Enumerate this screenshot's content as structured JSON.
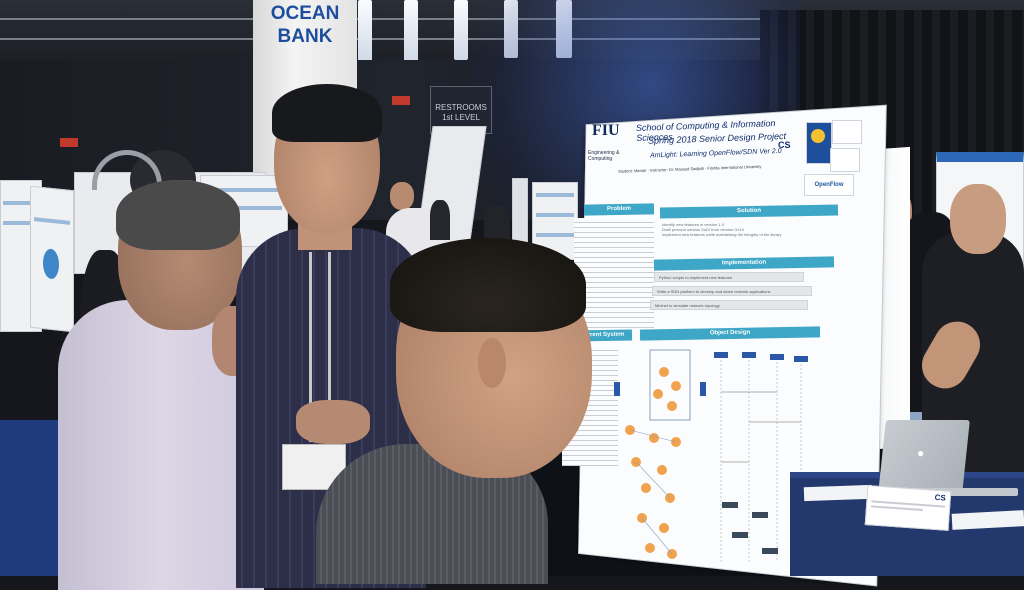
{
  "scene": {
    "description_kind": "photo",
    "pillar_sign": {
      "line1": "OCEAN",
      "line2": "BANK"
    },
    "restrooms_sign": {
      "line1": "RESTROOMS",
      "line2": "1st LEVEL"
    },
    "poster": {
      "logo": "FIU",
      "logo_sub": "Engineering & Computing",
      "title_line1": "School of Computing & Information Sciences",
      "title_line2": "Spring 2018 Senior Design Project",
      "title_line3": "AmLight: Learning OpenFlow/SDN Ver 2.0",
      "credits": "Student: Mentor · Instructor: Dr. Masoud Sadjadi · Florida International University",
      "cs_mark": "CS",
      "openflow_logo": "OpenFlow",
      "sections": {
        "problem": "Problem",
        "solution": "Solution",
        "implementation": "Implementation",
        "object_design": "Object Design",
        "current_system": "Current System"
      },
      "solution_items": [
        "Identify new features in version 1.4",
        "Draft protocol version SoDI from version Ox14",
        "Implement new features while maintaining the integrity of the library"
      ],
      "implementation_items": [
        "Python scripts to implement new features",
        "Write a SDN platform to develop and share network applications",
        "Mininet to simulate network topology"
      ]
    },
    "table_card_mark": "CS",
    "laptop": {
      "logo": "apple-logo"
    }
  }
}
